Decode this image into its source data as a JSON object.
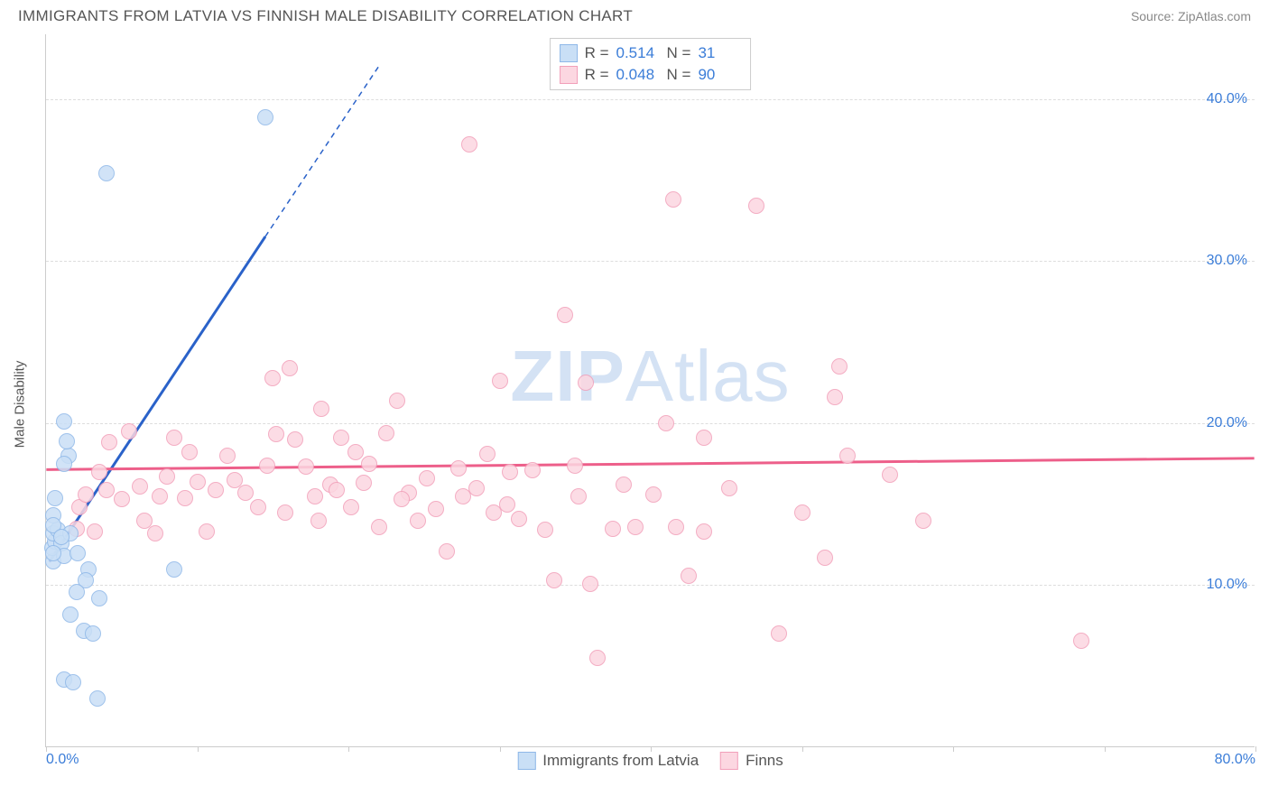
{
  "header": {
    "title": "IMMIGRANTS FROM LATVIA VS FINNISH MALE DISABILITY CORRELATION CHART",
    "source_prefix": "Source: ",
    "source_name": "ZipAtlas.com"
  },
  "axes": {
    "y_label": "Male Disability",
    "x_min": 0,
    "x_max": 80,
    "y_min": 0,
    "y_max": 44,
    "y_ticks": [
      10,
      20,
      30,
      40
    ],
    "y_tick_labels": [
      "10.0%",
      "20.0%",
      "30.0%",
      "40.0%"
    ],
    "x_ticks": [
      0,
      10,
      20,
      30,
      40,
      50,
      60,
      70,
      80
    ],
    "x_tick_labels": [
      "0.0%",
      "",
      "",
      "",
      "",
      "",
      "",
      "",
      "80.0%"
    ]
  },
  "styling": {
    "bg": "#ffffff",
    "grid_color": "#dddddd",
    "axis_color": "#cccccc",
    "tick_label_color": "#3b7dd8",
    "label_color": "#555555",
    "title_fontsize": 17,
    "tick_fontsize": 16,
    "watermark_text": "ZIPAtlas",
    "watermark_color": "#b9cfed",
    "point_radius": 9
  },
  "series": {
    "latvia": {
      "label": "Immigrants from Latvia",
      "fill": "#c9dff6",
      "stroke": "#8fb8e8",
      "line_color": "#2a62c9",
      "R": "0.514",
      "N": "31",
      "trend": {
        "x1": 0.2,
        "y1": 11.4,
        "x2": 14.5,
        "y2": 31.5,
        "dashed_to_x": 22,
        "dashed_to_y": 42
      },
      "points": [
        [
          0.5,
          11.5
        ],
        [
          0.4,
          12.3
        ],
        [
          0.6,
          12.7
        ],
        [
          0.5,
          13.2
        ],
        [
          0.8,
          13.4
        ],
        [
          1.0,
          12.6
        ],
        [
          1.2,
          11.8
        ],
        [
          1.6,
          13.2
        ],
        [
          0.6,
          15.4
        ],
        [
          1.5,
          18.0
        ],
        [
          1.4,
          18.9
        ],
        [
          1.2,
          17.5
        ],
        [
          1.2,
          20.1
        ],
        [
          2.1,
          12.0
        ],
        [
          2.8,
          11.0
        ],
        [
          2.6,
          10.3
        ],
        [
          2.0,
          9.6
        ],
        [
          3.5,
          9.2
        ],
        [
          1.6,
          8.2
        ],
        [
          2.5,
          7.2
        ],
        [
          3.1,
          7.0
        ],
        [
          1.2,
          4.2
        ],
        [
          3.4,
          3.0
        ],
        [
          1.8,
          4.0
        ],
        [
          4.0,
          35.4
        ],
        [
          14.5,
          38.9
        ],
        [
          0.5,
          14.3
        ],
        [
          8.5,
          11.0
        ],
        [
          0.5,
          13.7
        ],
        [
          1.0,
          13.0
        ],
        [
          0.5,
          12.0
        ]
      ]
    },
    "finns": {
      "label": "Finns",
      "fill": "#fcd7e1",
      "stroke": "#f29fb9",
      "line_color": "#ed5f8a",
      "R": "0.048",
      "N": "90",
      "trend": {
        "x1": 0,
        "y1": 17.1,
        "x2": 80,
        "y2": 17.8
      },
      "points": [
        [
          2.0,
          13.5
        ],
        [
          2.2,
          14.8
        ],
        [
          2.6,
          15.6
        ],
        [
          3.2,
          13.3
        ],
        [
          3.5,
          17.0
        ],
        [
          4.0,
          15.9
        ],
        [
          4.2,
          18.8
        ],
        [
          5.0,
          15.3
        ],
        [
          5.5,
          19.5
        ],
        [
          6.2,
          16.1
        ],
        [
          6.5,
          14.0
        ],
        [
          7.2,
          13.2
        ],
        [
          7.5,
          15.5
        ],
        [
          8.0,
          16.7
        ],
        [
          8.5,
          19.1
        ],
        [
          9.2,
          15.4
        ],
        [
          10.0,
          16.4
        ],
        [
          10.6,
          13.3
        ],
        [
          11.2,
          15.9
        ],
        [
          12.0,
          18.0
        ],
        [
          13.2,
          15.7
        ],
        [
          14.0,
          14.8
        ],
        [
          14.6,
          17.4
        ],
        [
          15.0,
          22.8
        ],
        [
          15.2,
          19.3
        ],
        [
          16.1,
          23.4
        ],
        [
          16.5,
          19.0
        ],
        [
          17.2,
          17.3
        ],
        [
          17.8,
          15.5
        ],
        [
          18.2,
          20.9
        ],
        [
          18.8,
          16.2
        ],
        [
          19.5,
          19.1
        ],
        [
          20.2,
          14.8
        ],
        [
          20.5,
          18.2
        ],
        [
          21.4,
          17.5
        ],
        [
          22.0,
          13.6
        ],
        [
          22.5,
          19.4
        ],
        [
          23.2,
          21.4
        ],
        [
          24.0,
          15.7
        ],
        [
          24.6,
          14.0
        ],
        [
          25.2,
          16.6
        ],
        [
          25.8,
          14.7
        ],
        [
          26.5,
          12.1
        ],
        [
          27.3,
          17.2
        ],
        [
          28.0,
          37.2
        ],
        [
          28.5,
          16.0
        ],
        [
          29.2,
          18.1
        ],
        [
          30.0,
          22.6
        ],
        [
          30.5,
          15.0
        ],
        [
          31.3,
          14.1
        ],
        [
          32.2,
          17.1
        ],
        [
          33.0,
          13.4
        ],
        [
          33.6,
          10.3
        ],
        [
          34.3,
          26.7
        ],
        [
          35.0,
          17.4
        ],
        [
          35.7,
          22.5
        ],
        [
          35.2,
          15.5
        ],
        [
          36.0,
          10.1
        ],
        [
          36.5,
          5.5
        ],
        [
          37.5,
          13.5
        ],
        [
          38.2,
          16.2
        ],
        [
          39.0,
          13.6
        ],
        [
          40.2,
          15.6
        ],
        [
          41.0,
          20.0
        ],
        [
          41.5,
          33.8
        ],
        [
          41.7,
          13.6
        ],
        [
          42.5,
          10.6
        ],
        [
          43.5,
          13.3
        ],
        [
          43.5,
          19.1
        ],
        [
          47.0,
          33.4
        ],
        [
          48.5,
          7.0
        ],
        [
          50.0,
          14.5
        ],
        [
          51.5,
          11.7
        ],
        [
          52.5,
          23.5
        ],
        [
          53.0,
          18.0
        ],
        [
          52.2,
          21.6
        ],
        [
          55.8,
          16.8
        ],
        [
          58.0,
          14.0
        ],
        [
          68.5,
          6.6
        ],
        [
          45.2,
          16.0
        ],
        [
          15.8,
          14.5
        ],
        [
          18.0,
          14.0
        ],
        [
          21.0,
          16.3
        ],
        [
          23.5,
          15.3
        ],
        [
          27.6,
          15.5
        ],
        [
          29.6,
          14.5
        ],
        [
          30.7,
          17.0
        ],
        [
          9.5,
          18.2
        ],
        [
          12.5,
          16.5
        ],
        [
          19.2,
          15.9
        ]
      ]
    }
  },
  "legend_top": {
    "r_label": "R =",
    "n_label": "N ="
  }
}
